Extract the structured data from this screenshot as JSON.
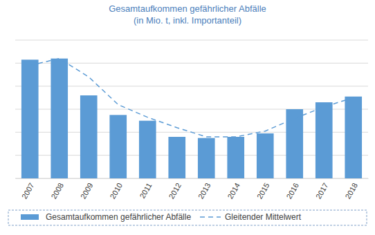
{
  "chart_data": {
    "type": "bar",
    "title": "Gesamtaufkommen gefährlicher Abfälle",
    "subtitle": "(in Mio. t, inkl. Importanteil)",
    "categories": [
      "2007",
      "2008",
      "2009",
      "2010",
      "2011",
      "2012",
      "2013",
      "2014",
      "2015",
      "2016",
      "2017",
      "2018"
    ],
    "series": [
      {
        "name": "Gesamtaufkommen gefährlicher Abfälle",
        "type": "bar",
        "color": "#5b9bd5",
        "values": [
          1.03,
          1.04,
          0.72,
          0.55,
          0.5,
          0.36,
          0.35,
          0.36,
          0.39,
          0.6,
          0.66,
          0.71
        ]
      },
      {
        "name": "Gleitender Mittelwert",
        "type": "line",
        "color": "#5b9bd5",
        "line_style": "dashed",
        "values": [
          0.98,
          1.04,
          0.88,
          0.64,
          0.53,
          0.44,
          0.36,
          0.36,
          0.41,
          0.52,
          0.62,
          0.7
        ]
      }
    ],
    "ylim": [
      0,
      1.2
    ],
    "yticks": [
      0,
      0.2,
      0.4,
      0.6,
      0.8,
      1,
      1.2
    ],
    "grid": true,
    "tick_labels": "x",
    "legend": "bottom"
  }
}
